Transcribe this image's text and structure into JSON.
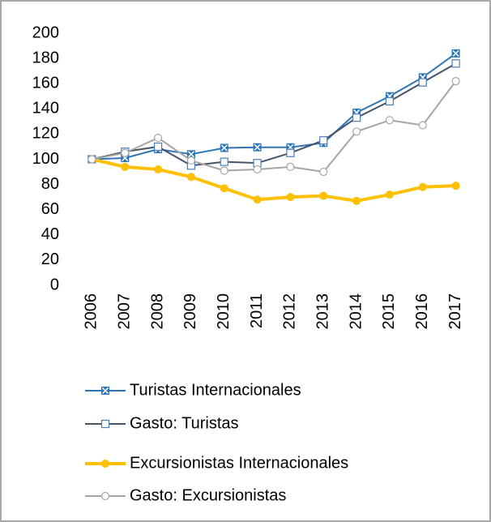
{
  "chart_data": {
    "type": "line",
    "categories": [
      "2006",
      "2007",
      "2008",
      "2009",
      "2010",
      "2011",
      "2012",
      "2013",
      "2014",
      "2015",
      "2016",
      "2017"
    ],
    "series": [
      {
        "name": "Turistas Internacionales",
        "color": "#2e75b6",
        "marker": "x",
        "values": [
          100,
          101,
          108,
          104,
          109,
          109.5,
          109.5,
          113,
          137,
          150,
          165,
          184
        ]
      },
      {
        "name": "Gasto: Turistas",
        "color": "#44546a",
        "marker": "square",
        "values": [
          100,
          106,
          110,
          95,
          98,
          97,
          105,
          115,
          133,
          146,
          161,
          176
        ]
      },
      {
        "name": "Excursionistas Internacionales",
        "color": "#ffc000",
        "marker": "circle",
        "values": [
          100,
          94,
          92,
          86,
          77,
          68,
          70,
          71,
          67,
          72,
          78,
          79
        ]
      },
      {
        "name": "Gasto: Excursionistas",
        "color": "#a5a5a5",
        "marker": "circle-open",
        "values": [
          100,
          105,
          117,
          99,
          91,
          92,
          94,
          90,
          122,
          131,
          127,
          162
        ]
      }
    ],
    "ylim": [
      0,
      200
    ],
    "yticks": [
      0,
      20,
      40,
      60,
      80,
      100,
      120,
      140,
      160,
      180,
      200
    ],
    "grid": false
  }
}
